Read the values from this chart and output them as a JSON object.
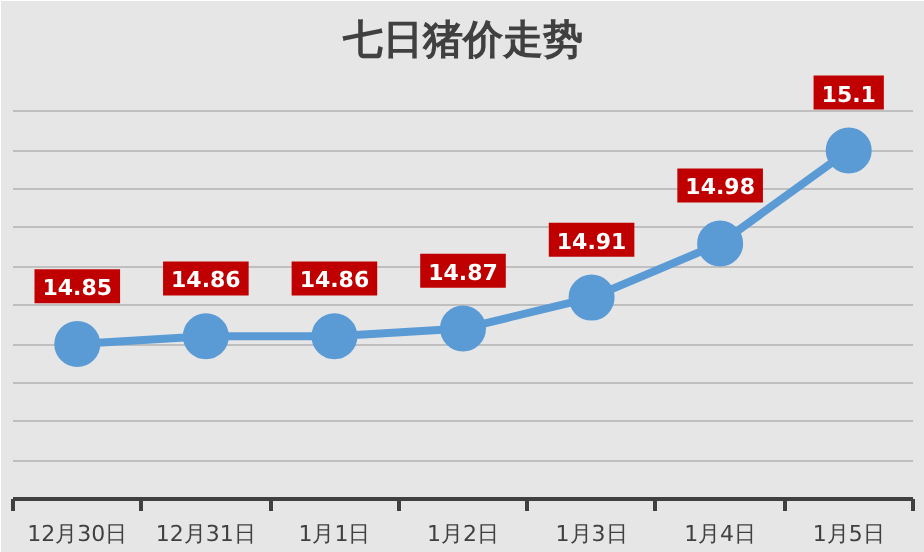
{
  "chart_data": {
    "type": "line",
    "title": "七日猪价走势",
    "categories": [
      "12月30日",
      "12月31日",
      "1月1日",
      "1月2日",
      "1月3日",
      "1月4日",
      "1月5日"
    ],
    "series": [
      {
        "color": "#5b9bd5",
        "values": [
          14.85,
          14.86,
          14.86,
          14.87,
          14.91,
          14.98,
          15.1
        ]
      }
    ],
    "ylim": [
      14.65,
      15.2
    ],
    "yticks": [
      {
        "value": 14.7,
        "label": null
      },
      {
        "value": 14.75,
        "label": null
      },
      {
        "value": 14.8,
        "label": null
      },
      {
        "value": 14.85,
        "label": null
      },
      {
        "value": 14.9,
        "label": null
      },
      {
        "value": 14.95,
        "label": null
      },
      {
        "value": 15.0,
        "label": null
      },
      {
        "value": 15.05,
        "label": null
      },
      {
        "value": 15.1,
        "label": null
      },
      {
        "value": 15.15,
        "label": null
      }
    ],
    "grid": "y",
    "tick_labels": "x",
    "marker": "circle",
    "line_style": "solid",
    "data_labels": true
  }
}
